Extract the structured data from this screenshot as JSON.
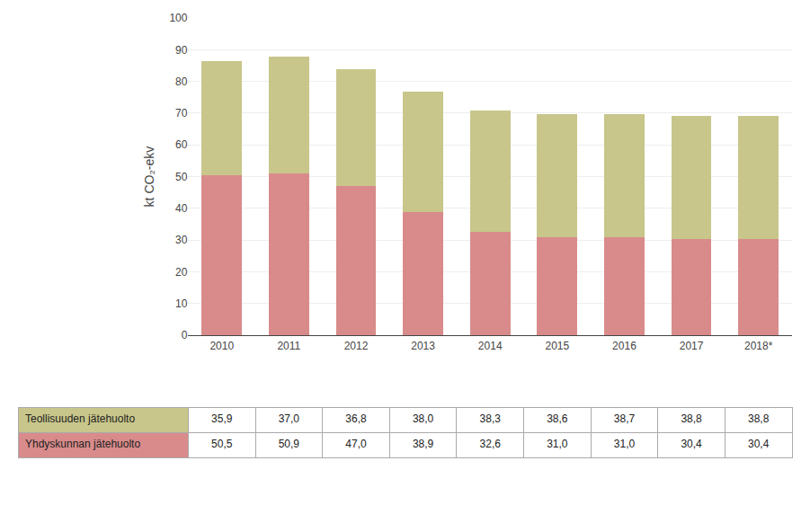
{
  "chart_data": {
    "type": "bar",
    "stacked": true,
    "categories": [
      "2010",
      "2011",
      "2012",
      "2013",
      "2014",
      "2015",
      "2016",
      "2017",
      "2018*"
    ],
    "ylabel": "kt CO₂-ekv",
    "ylim": [
      0,
      100
    ],
    "yticks": [
      0,
      10,
      20,
      30,
      40,
      50,
      60,
      70,
      80,
      90,
      100
    ],
    "grid": true,
    "series": [
      {
        "name": "Yhdyskunnan jätehuolto",
        "color": "#D98B8B",
        "values": [
          50.5,
          50.9,
          47.0,
          38.9,
          32.6,
          31.0,
          31.0,
          30.4,
          30.4
        ],
        "value_labels": [
          "50,5",
          "50,9",
          "47,0",
          "38,9",
          "32,6",
          "31,0",
          "31,0",
          "30,4",
          "30,4"
        ]
      },
      {
        "name": "Teollisuuden jätehuolto",
        "color": "#C8C68A",
        "values": [
          35.9,
          37.0,
          36.8,
          38.0,
          38.3,
          38.6,
          38.7,
          38.8,
          38.8
        ],
        "value_labels": [
          "35,9",
          "37,0",
          "36,8",
          "38,0",
          "38,3",
          "38,6",
          "38,7",
          "38,8",
          "38,8"
        ]
      }
    ]
  }
}
